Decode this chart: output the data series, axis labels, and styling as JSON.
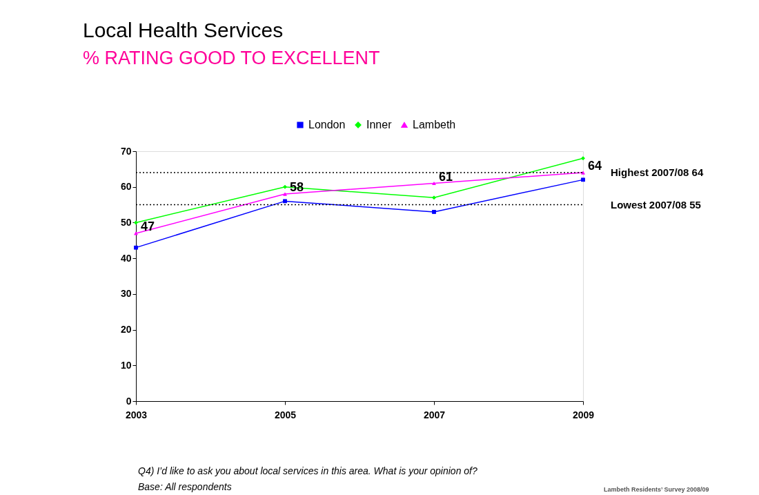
{
  "chart_data": {
    "type": "line",
    "title": "Local Health Services",
    "subtitle": "% RATING GOOD TO EXCELLENT",
    "categories": [
      "2003",
      "2005",
      "2007",
      "2009"
    ],
    "series": [
      {
        "name": "London",
        "color": "#0000ff",
        "marker": "square",
        "values": [
          43,
          56,
          53,
          62
        ]
      },
      {
        "name": "Inner",
        "color": "#00ff00",
        "marker": "diamond",
        "values": [
          50,
          60,
          57,
          68
        ]
      },
      {
        "name": "Lambeth",
        "color": "#ff00ff",
        "marker": "triangle",
        "values": [
          47,
          58,
          61,
          64
        ],
        "value_labels": [
          "47",
          "58",
          "61",
          "64"
        ]
      }
    ],
    "ylim": [
      0,
      70
    ],
    "yticks": [
      0,
      10,
      20,
      30,
      40,
      50,
      60,
      70
    ],
    "grid": false,
    "legend": "top",
    "ref_lines": [
      {
        "axis": "y",
        "value": 64,
        "label": "Highest 2007/08 64",
        "color": "#000000",
        "line_style": "dotted"
      },
      {
        "axis": "y",
        "value": 55,
        "label": "Lowest 2007/08 55",
        "color": "#000000",
        "line_style": "dotted"
      }
    ],
    "annotations": [
      "Q4) I’d like to ask you about local services in this area. What is your opinion of?",
      "Base: All respondents",
      "Lambeth Residents’ Survey 2008/09"
    ]
  }
}
